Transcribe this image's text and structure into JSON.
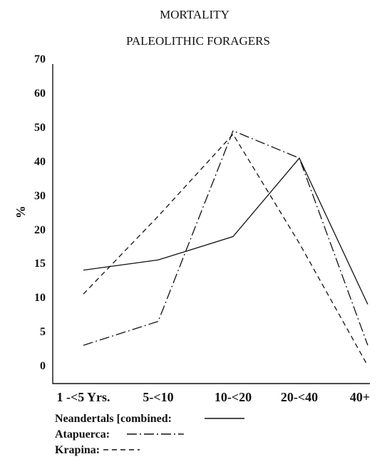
{
  "chart_data": {
    "type": "line",
    "title": "MORTALITY",
    "subtitle": "PALEOLITHIC FORAGERS",
    "ylabel": "%",
    "xlabel": "",
    "categories": [
      "1 -<5 Yrs.",
      "5-<10",
      "10-<20",
      "20-<40",
      "40+"
    ],
    "y_tick_labels": [
      "70",
      "60",
      "50",
      "40",
      "30",
      "20",
      "15",
      "10",
      "5",
      "0"
    ],
    "grid": false,
    "legend_position": "bottom-left",
    "series": [
      {
        "name": "Neandertals [combined:",
        "line_style": "solid",
        "values": [
          14,
          15.5,
          19,
          41,
          9
        ]
      },
      {
        "name": "Atapuerca:",
        "line_style": "dash-dot",
        "values": [
          3,
          6.5,
          49,
          41,
          3
        ]
      },
      {
        "name": "Krapina:",
        "line_style": "dashed",
        "values": [
          10.5,
          24,
          48,
          18,
          0
        ]
      }
    ],
    "color": "#111111"
  }
}
